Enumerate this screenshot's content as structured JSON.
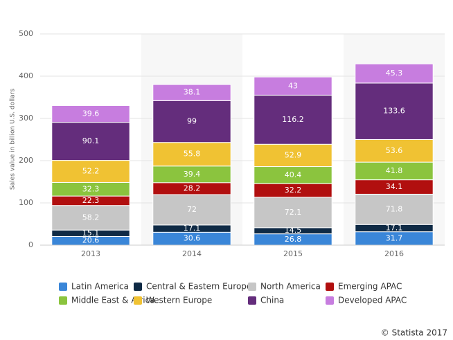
{
  "chart_data": {
    "type": "stacked-bar",
    "y_label": "Sales value in billion U.S. dollars",
    "credit": "© Statista 2017",
    "categories": [
      "2013",
      "2014",
      "2015",
      "2016"
    ],
    "ylim": [
      0,
      500
    ],
    "yticks": [
      0,
      100,
      200,
      300,
      400,
      500
    ],
    "grid": true,
    "series": [
      {
        "name": "Latin America",
        "color": "#3a86d8",
        "values": [
          20.6,
          30.6,
          26.8,
          31.7
        ]
      },
      {
        "name": "Central & Eastern Europe",
        "color": "#0f2a45",
        "values": [
          15.1,
          17.1,
          14.5,
          17.1
        ]
      },
      {
        "name": "North America",
        "color": "#c6c6c6",
        "values": [
          58.2,
          72,
          72.1,
          71.8
        ]
      },
      {
        "name": "Emerging APAC",
        "color": "#b10f0f",
        "values": [
          22.3,
          28.2,
          32.2,
          34.1
        ]
      },
      {
        "name": "Middle East & Africa",
        "color": "#8bc43e",
        "values": [
          32.3,
          39.4,
          40.4,
          41.8
        ]
      },
      {
        "name": "Western Europe",
        "color": "#f0c233",
        "values": [
          52.2,
          55.8,
          52.9,
          53.6
        ]
      },
      {
        "name": "China",
        "color": "#642d7c",
        "values": [
          90.1,
          99,
          116.2,
          133.6
        ]
      },
      {
        "name": "Developed APAC",
        "color": "#c77ddf",
        "values": [
          39.6,
          38.1,
          43,
          45.3
        ]
      }
    ]
  }
}
